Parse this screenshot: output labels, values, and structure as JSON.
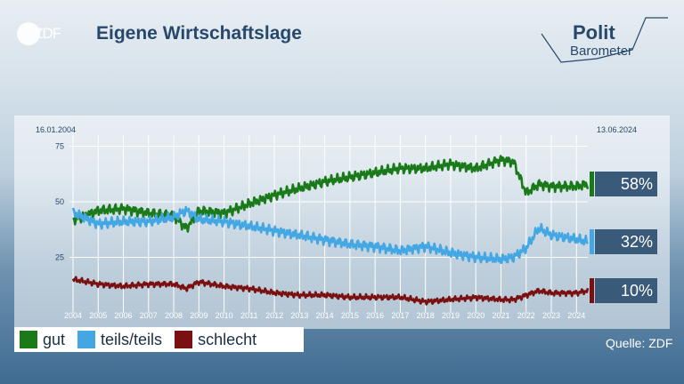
{
  "header": {
    "title": "Eigene Wirtschaftslage",
    "logo_text": "ZDF",
    "brand_line1": "Polit",
    "brand_line2": "Barometer"
  },
  "dates": {
    "start": "16.01.2004",
    "end": "13.06.2024"
  },
  "source": "Quelle: ZDF",
  "colors": {
    "gut": "#1a7a1a",
    "teils": "#42a7e3",
    "schlecht": "#7a1010"
  },
  "chart_data": {
    "type": "line",
    "ylim": [
      0,
      80
    ],
    "yticks": [
      25,
      50,
      75
    ],
    "x_tick_labels": [
      "2004",
      "2005",
      "2006",
      "2007",
      "2008",
      "2009",
      "2010",
      "2011",
      "2012",
      "2013",
      "2014",
      "2015",
      "2016",
      "2017",
      "2018",
      "2019",
      "2020",
      "2021",
      "2022",
      "2023",
      "2024"
    ],
    "x": [
      2004.04,
      2005,
      2006,
      2007,
      2008,
      2008.5,
      2009,
      2010,
      2011,
      2012,
      2013,
      2014,
      2015,
      2016,
      2017,
      2018,
      2019,
      2020,
      2021,
      2021.5,
      2022,
      2022.5,
      2023,
      2024,
      2024.45
    ],
    "series": [
      {
        "name": "gut",
        "color": "#1a7a1a",
        "values": [
          42,
          46,
          47,
          45,
          44,
          38,
          46,
          45,
          49,
          53,
          56,
          59,
          61,
          63,
          65,
          65,
          67,
          65,
          69,
          68,
          54,
          58,
          57,
          57,
          58
        ]
      },
      {
        "name": "teils/teils",
        "color": "#42a7e3",
        "values": [
          45,
          40,
          41,
          41,
          43,
          46,
          42,
          41,
          39,
          37,
          35,
          33,
          31,
          30,
          28,
          30,
          27,
          25,
          24,
          25,
          29,
          38,
          35,
          33,
          32
        ]
      },
      {
        "name": "schlecht",
        "color": "#7a1010",
        "values": [
          15,
          13,
          12,
          13,
          13,
          11,
          14,
          12,
          11,
          9,
          8,
          8,
          7,
          7,
          7,
          5,
          6,
          7,
          6,
          6,
          8,
          10,
          9,
          9,
          10
        ]
      }
    ],
    "end_values": [
      {
        "series": "gut",
        "label": "58%"
      },
      {
        "series": "teils/teils",
        "label": "32%"
      },
      {
        "series": "schlecht",
        "label": "10%"
      }
    ]
  },
  "legend": [
    {
      "label": "gut",
      "color": "#1a7a1a"
    },
    {
      "label": "teils/teils",
      "color": "#42a7e3"
    },
    {
      "label": "schlecht",
      "color": "#7a1010"
    }
  ]
}
